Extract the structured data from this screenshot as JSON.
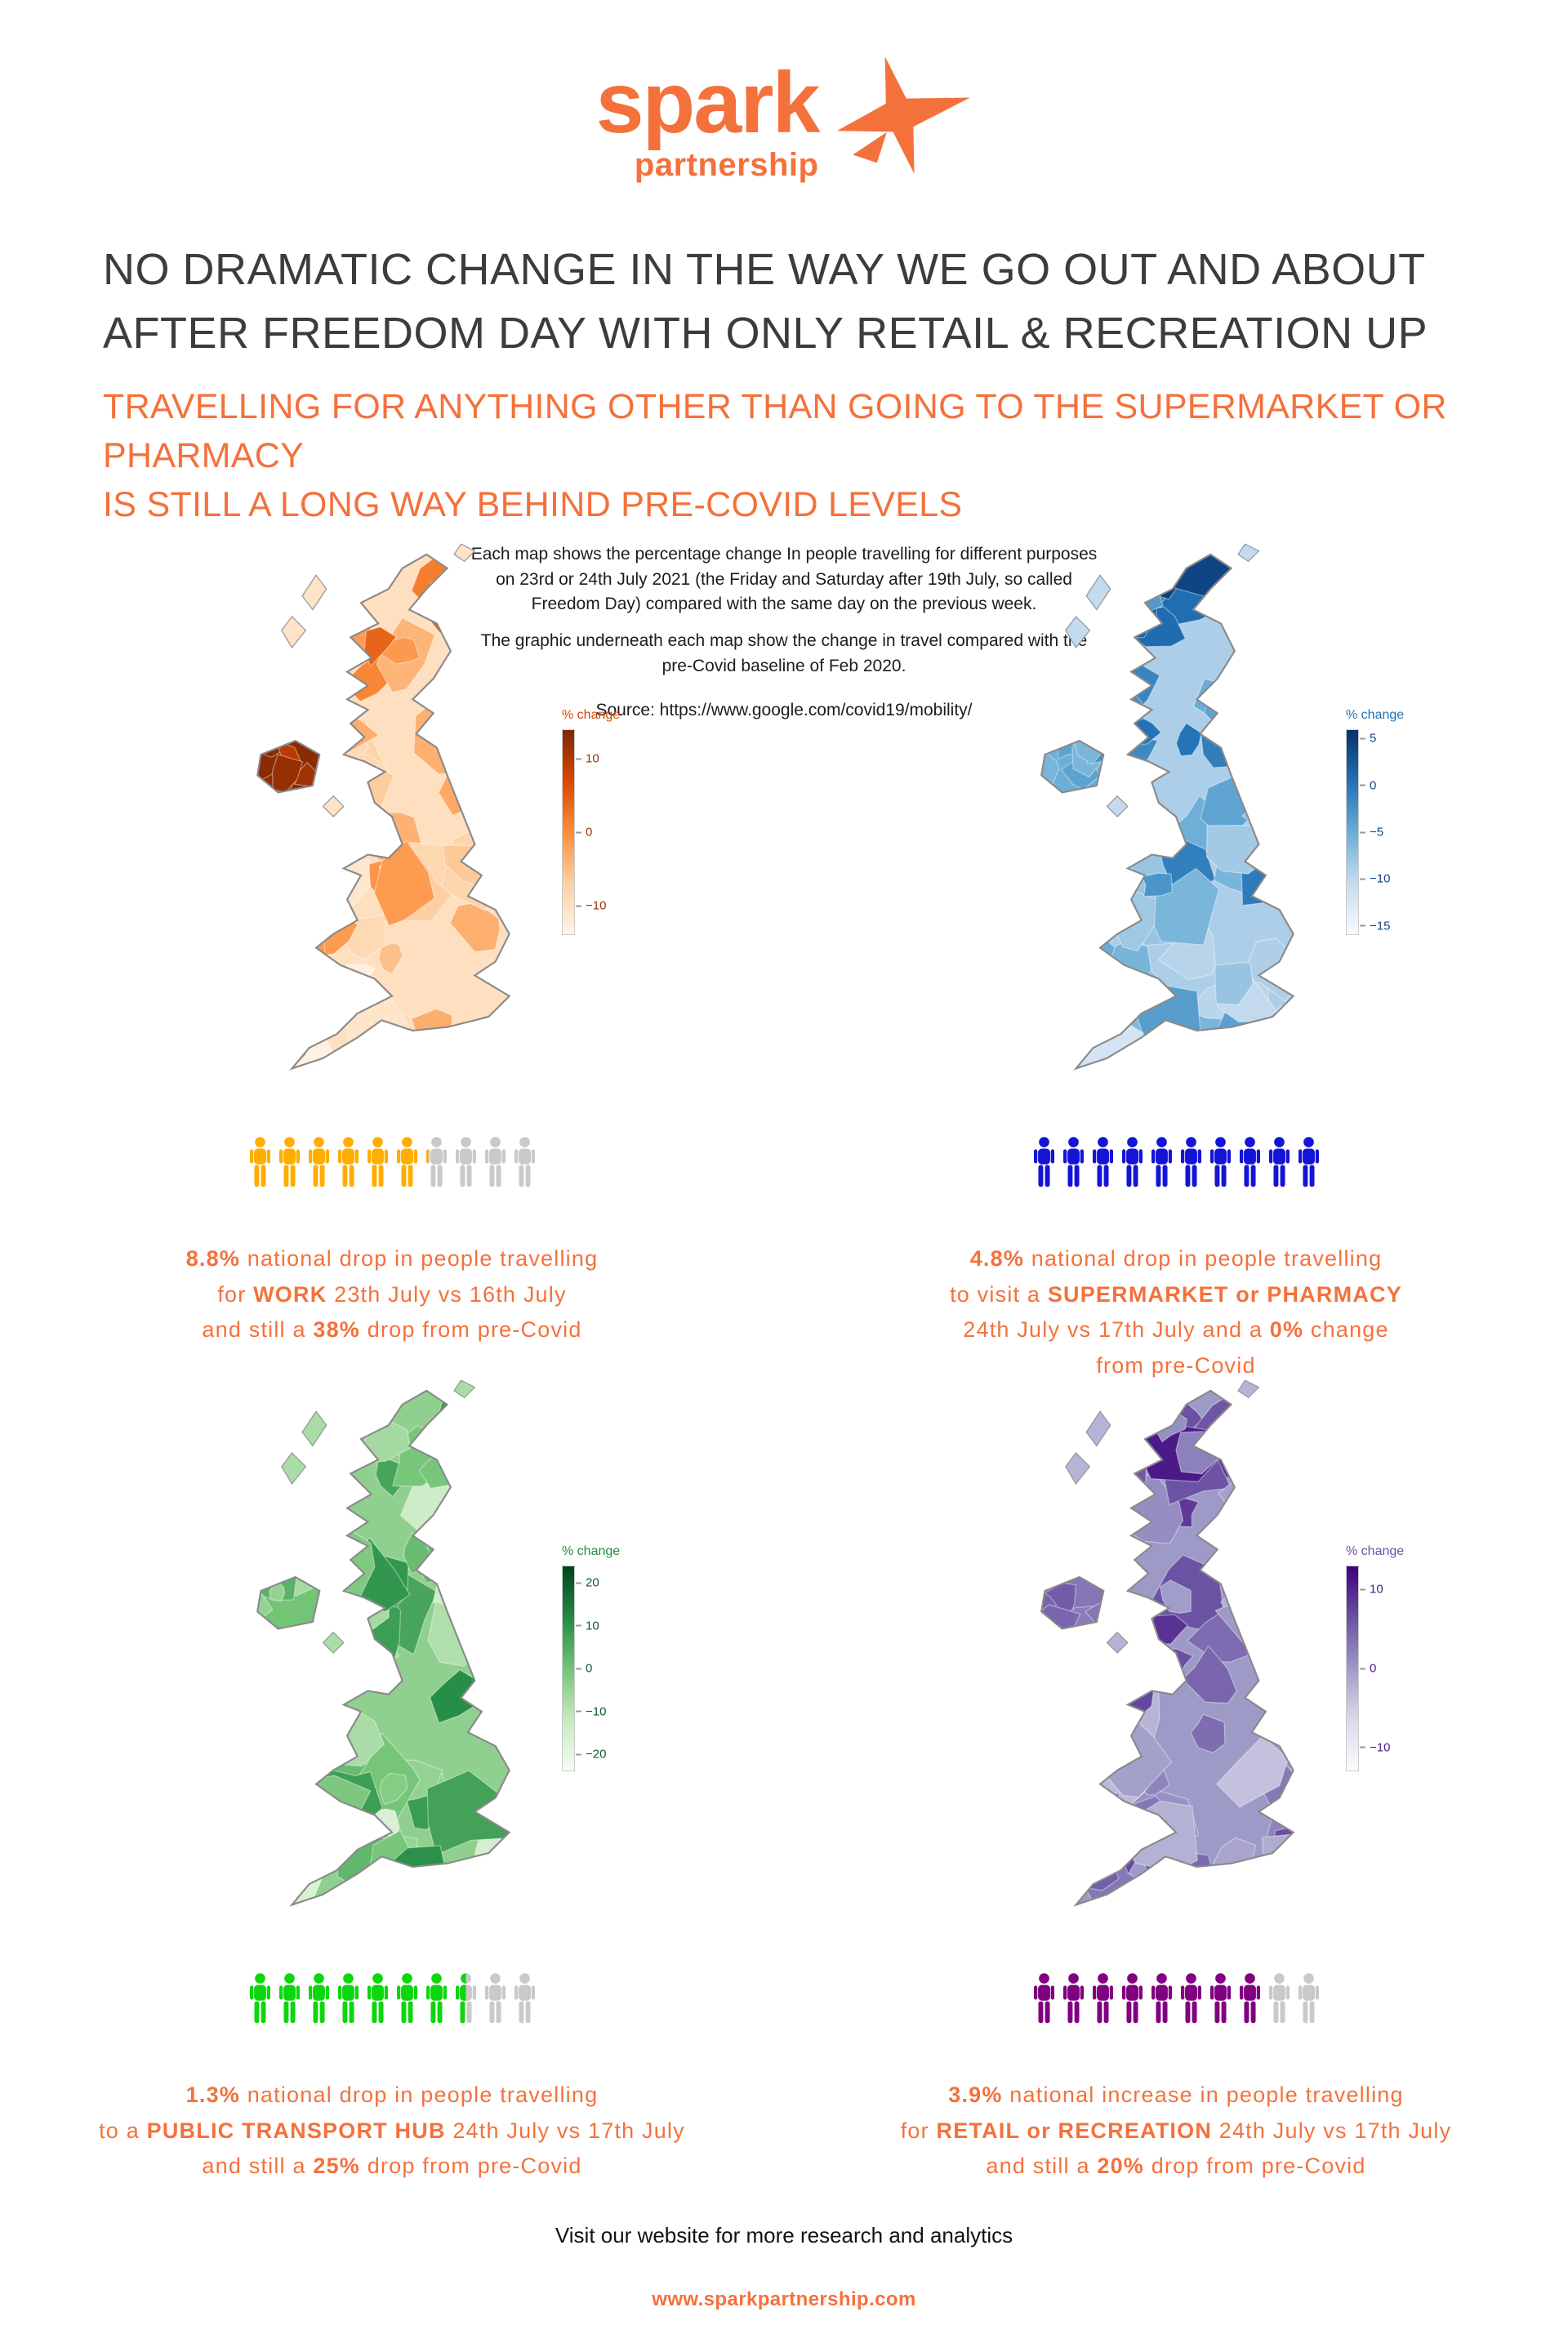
{
  "page": {
    "background": "#ffffff",
    "accent_color": "#F4713B",
    "headline_color": "#3C3C3B"
  },
  "logo": {
    "name": "spark",
    "sub": "partnership",
    "color": "#F4713B"
  },
  "headline": "NO DRAMATIC CHANGE IN THE WAY WE GO OUT AND ABOUT\nAFTER FREEDOM DAY WITH ONLY RETAIL & RECREATION UP",
  "subheadline": "TRAVELLING FOR ANYTHING OTHER THAN GOING TO THE SUPERMARKET OR PHARMACY\nIS STILL A LONG WAY BEHIND PRE-COVID LEVELS",
  "intro": {
    "para1": "Each map shows the percentage change In people travelling for different purposes on 23rd or 24th July 2021 (the Friday and Saturday after 19th July, so called Freedom Day) compared with the same day on the previous week.",
    "para2": "The graphic underneath each map show the change in travel compared with the pre-Covid baseline of Feb 2020.",
    "source": "Source:  https://www.google.com/covid19/mobility/"
  },
  "chart_data": {
    "type": "choropleth-infographic",
    "region": "United Kingdom",
    "description": "Percentage change in people travelling for different purposes, Freedom Day weekend (23rd/24th July 2021) vs previous week, plus change vs pre-Covid baseline (Feb 2020)",
    "maps": [
      {
        "id": "work",
        "purpose": "WORK",
        "weekly_change_pct": -8.8,
        "precovid_change_pct": -38,
        "colormap": [
          "#fff5eb",
          "#fdd0a2",
          "#fd8d3c",
          "#d94801",
          "#7f2704"
        ],
        "legend": {
          "label": "% change",
          "ticks": [
            10,
            0,
            -10
          ],
          "max": 14,
          "min": -14
        },
        "pictogram": {
          "filled": 6.2,
          "total": 10,
          "fill_color": "#FFAD00",
          "empty_color": "#C9C9C9"
        },
        "caption_lines": [
          [
            {
              "t": "8.8%",
              "b": true
            },
            {
              "t": " national drop in people travelling",
              "b": false
            }
          ],
          [
            {
              "t": "for ",
              "b": false
            },
            {
              "t": "WORK",
              "b": true
            },
            {
              "t": " 23th July vs 16th July",
              "b": false
            }
          ],
          [
            {
              "t": "and still a ",
              "b": false
            },
            {
              "t": "38%",
              "b": true
            },
            {
              "t": " drop from pre-Covid",
              "b": false
            }
          ]
        ]
      },
      {
        "id": "supermarket_pharmacy",
        "purpose": "SUPERMARKET or PHARMACY",
        "weekly_change_pct": -4.8,
        "precovid_change_pct": 0,
        "colormap": [
          "#f7fbff",
          "#c6dbef",
          "#6baed6",
          "#2171b5",
          "#08306b"
        ],
        "legend": {
          "label": "% change",
          "ticks": [
            5,
            0,
            -5,
            -10,
            -15
          ],
          "max": 6,
          "min": -16
        },
        "pictogram": {
          "filled": 10,
          "total": 10,
          "fill_color": "#1414D6",
          "empty_color": "#C9C9C9"
        },
        "caption_lines": [
          [
            {
              "t": "4.8%",
              "b": true
            },
            {
              "t": " national drop in people travelling",
              "b": false
            }
          ],
          [
            {
              "t": "to visit a ",
              "b": false
            },
            {
              "t": "SUPERMARKET or PHARMACY",
              "b": true
            }
          ],
          [
            {
              "t": "24th July vs 17th July and a ",
              "b": false
            },
            {
              "t": "0%",
              "b": true
            },
            {
              "t": " change",
              "b": false
            }
          ],
          [
            {
              "t": "from pre-Covid",
              "b": false
            }
          ]
        ]
      },
      {
        "id": "public_transport_hub",
        "purpose": "PUBLIC TRANSPORT HUB",
        "weekly_change_pct": -1.3,
        "precovid_change_pct": -25,
        "colormap": [
          "#f7fcf5",
          "#c7e9c0",
          "#74c476",
          "#238b45",
          "#00441b"
        ],
        "legend": {
          "label": "% change",
          "ticks": [
            20,
            10,
            0,
            -10,
            -20
          ],
          "max": 24,
          "min": -24
        },
        "pictogram": {
          "filled": 7.5,
          "total": 10,
          "fill_color": "#0ED60E",
          "empty_color": "#C9C9C9"
        },
        "caption_lines": [
          [
            {
              "t": "1.3%",
              "b": true
            },
            {
              "t": " national drop in people travelling",
              "b": false
            }
          ],
          [
            {
              "t": "to a ",
              "b": false
            },
            {
              "t": "PUBLIC TRANSPORT HUB",
              "b": true
            },
            {
              "t": " 24th July vs 17th July",
              "b": false
            }
          ],
          [
            {
              "t": "and still a ",
              "b": false
            },
            {
              "t": "25%",
              "b": true
            },
            {
              "t": " drop from pre-Covid",
              "b": false
            }
          ]
        ]
      },
      {
        "id": "retail_recreation",
        "purpose": "RETAIL or RECREATION",
        "weekly_change_pct": 3.9,
        "precovid_change_pct": -20,
        "colormap": [
          "#fcfbfd",
          "#dadaeb",
          "#9e9ac8",
          "#6a51a3",
          "#3f007d"
        ],
        "legend": {
          "label": "% change",
          "ticks": [
            10,
            0,
            -10
          ],
          "max": 13,
          "min": -13
        },
        "pictogram": {
          "filled": 8,
          "total": 10,
          "fill_color": "#800080",
          "empty_color": "#C9C9C9"
        },
        "caption_lines": [
          [
            {
              "t": "3.9%",
              "b": true
            },
            {
              "t": " national increase in people travelling",
              "b": false
            }
          ],
          [
            {
              "t": "for ",
              "b": false
            },
            {
              "t": "RETAIL or RECREATION",
              "b": true
            },
            {
              "t": " 24th July vs 17th July",
              "b": false
            }
          ],
          [
            {
              "t": "and still a ",
              "b": false
            },
            {
              "t": "20%",
              "b": true
            },
            {
              "t": " drop from pre-Covid",
              "b": false
            }
          ]
        ]
      }
    ]
  },
  "footer": {
    "text": "Visit our website for more research and analytics",
    "url": "www.sparkpartnership.com"
  }
}
